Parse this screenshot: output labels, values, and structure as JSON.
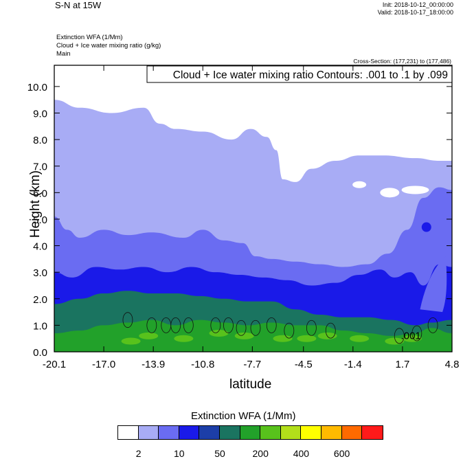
{
  "header": {
    "title": "S-N at 15W",
    "init": "Init: 2018-10-12_00:00:00",
    "valid": "Valid: 2018-10-17_18:00:00"
  },
  "fields": {
    "line1": "Extinction WFA   (1/Mm)",
    "line2": "Cloud + Ice water mixing ratio   (g/kg)",
    "line3": "Main"
  },
  "cross_section": "Cross-Section: (177,231) to (177,486)",
  "contour_info": "Cloud + Ice water mixing ratio Contours: .001 to .1 by .099",
  "contour_label": ".001",
  "legend": {
    "title": "Extinction WFA  (1/Mm)",
    "colors": [
      "#ffffff",
      "#a8acf5",
      "#6a6cf2",
      "#1a1ae8",
      "#1c3ea8",
      "#1a7460",
      "#22a12a",
      "#58c21c",
      "#b2df1a",
      "#ffff00",
      "#ffba00",
      "#ff6a00",
      "#ff1a1a"
    ],
    "labels": [
      "2",
      "10",
      "50",
      "200",
      "400",
      "600"
    ]
  },
  "chart_data": {
    "type": "heatmap",
    "title": "S-N at 15W",
    "xlabel": "latitude",
    "ylabel": "Height (km)",
    "xlim": [
      -20.1,
      4.8
    ],
    "ylim": [
      0.0,
      10.8
    ],
    "x_ticks": [
      "-20.1",
      "-17.0",
      "-13.9",
      "-10.8",
      "-7.7",
      "-4.5",
      "-1.4",
      "1.7",
      "4.8"
    ],
    "y_ticks": [
      "0.0",
      "1.0",
      "2.0",
      "3.0",
      "4.0",
      "5.0",
      "6.0",
      "7.0",
      "8.0",
      "9.0",
      "10.0"
    ],
    "colorbar_label": "Extinction WFA  (1/Mm)",
    "colorbar_ticks": [
      2,
      10,
      50,
      200,
      400,
      600
    ],
    "layers": [
      {
        "level": "2-10",
        "top_km": [
          [
            -20.1,
            9.5
          ],
          [
            -18.5,
            9.2
          ],
          [
            -16.5,
            9.0
          ],
          [
            -14.5,
            9.2
          ],
          [
            -13.5,
            8.6
          ],
          [
            -12.5,
            8.4
          ],
          [
            -10.8,
            8.3
          ],
          [
            -9.0,
            8.0
          ],
          [
            -7.8,
            8.4
          ],
          [
            -6.8,
            8.1
          ],
          [
            -6.2,
            7.6
          ],
          [
            -5.8,
            6.5
          ],
          [
            -5.0,
            6.4
          ],
          [
            -4.0,
            6.9
          ],
          [
            -2.5,
            7.2
          ],
          [
            -1.0,
            7.4
          ],
          [
            0.5,
            7.4
          ],
          [
            2.5,
            7.3
          ],
          [
            4.0,
            7.2
          ],
          [
            4.8,
            7.2
          ]
        ]
      },
      {
        "level": "10-50",
        "top_km": [
          [
            -20.1,
            5.1
          ],
          [
            -19.3,
            4.6
          ],
          [
            -18.5,
            4.3
          ],
          [
            -17.0,
            4.6
          ],
          [
            -15.5,
            4.4
          ],
          [
            -14.0,
            4.5
          ],
          [
            -12.0,
            4.3
          ],
          [
            -10.8,
            4.6
          ],
          [
            -9.5,
            4.2
          ],
          [
            -8.3,
            4.1
          ],
          [
            -7.5,
            3.6
          ],
          [
            -6.5,
            3.5
          ],
          [
            -5.0,
            3.4
          ],
          [
            -3.5,
            3.3
          ],
          [
            -2.0,
            3.2
          ],
          [
            -0.5,
            3.3
          ],
          [
            0.8,
            3.7
          ],
          [
            2.0,
            4.6
          ],
          [
            3.0,
            5.8
          ],
          [
            4.0,
            6.2
          ],
          [
            4.8,
            6.1
          ]
        ]
      },
      {
        "level": "50-200",
        "top_km": [
          [
            -20.1,
            3.0
          ],
          [
            -19.0,
            2.8
          ],
          [
            -17.5,
            3.2
          ],
          [
            -16.0,
            3.1
          ],
          [
            -14.5,
            3.2
          ],
          [
            -13.0,
            3.0
          ],
          [
            -11.5,
            3.2
          ],
          [
            -10.0,
            3.0
          ],
          [
            -8.5,
            2.9
          ],
          [
            -7.0,
            2.8
          ],
          [
            -5.5,
            2.7
          ],
          [
            -4.0,
            2.5
          ],
          [
            -2.5,
            2.6
          ],
          [
            -1.0,
            2.9
          ],
          [
            0.3,
            3.1
          ],
          [
            1.2,
            2.8
          ],
          [
            2.2,
            3.0
          ],
          [
            3.0,
            2.5
          ],
          [
            4.0,
            3.3
          ],
          [
            4.8,
            3.2
          ]
        ]
      },
      {
        "level": "200-400",
        "top_km": [
          [
            -20.1,
            1.8
          ],
          [
            -18.5,
            2.0
          ],
          [
            -17.0,
            2.2
          ],
          [
            -15.5,
            2.3
          ],
          [
            -14.0,
            2.2
          ],
          [
            -12.5,
            2.2
          ],
          [
            -11.0,
            2.1
          ],
          [
            -9.5,
            2.0
          ],
          [
            -8.0,
            1.9
          ],
          [
            -6.5,
            1.9
          ],
          [
            -5.0,
            1.6
          ],
          [
            -3.5,
            1.4
          ],
          [
            -2.0,
            1.3
          ],
          [
            -0.5,
            1.3
          ],
          [
            1.0,
            1.2
          ],
          [
            2.5,
            1.0
          ],
          [
            3.5,
            1.1
          ],
          [
            4.8,
            1.2
          ]
        ]
      },
      {
        "level": "400-600",
        "top_km": [
          [
            -20.1,
            0.7
          ],
          [
            -18.5,
            0.8
          ],
          [
            -17.0,
            1.0
          ],
          [
            -15.5,
            1.1
          ],
          [
            -14.0,
            1.2
          ],
          [
            -12.5,
            1.0
          ],
          [
            -11.0,
            1.2
          ],
          [
            -9.5,
            1.1
          ],
          [
            -8.0,
            1.0
          ],
          [
            -6.5,
            1.1
          ],
          [
            -5.0,
            1.0
          ],
          [
            -3.5,
            1.0
          ],
          [
            -2.0,
            0.8
          ],
          [
            -0.5,
            0.7
          ],
          [
            1.0,
            0.6
          ],
          [
            2.5,
            0.7
          ],
          [
            3.5,
            0.9
          ],
          [
            4.8,
            0.7
          ]
        ]
      }
    ],
    "contour_annotation": ".001",
    "grid": false
  }
}
